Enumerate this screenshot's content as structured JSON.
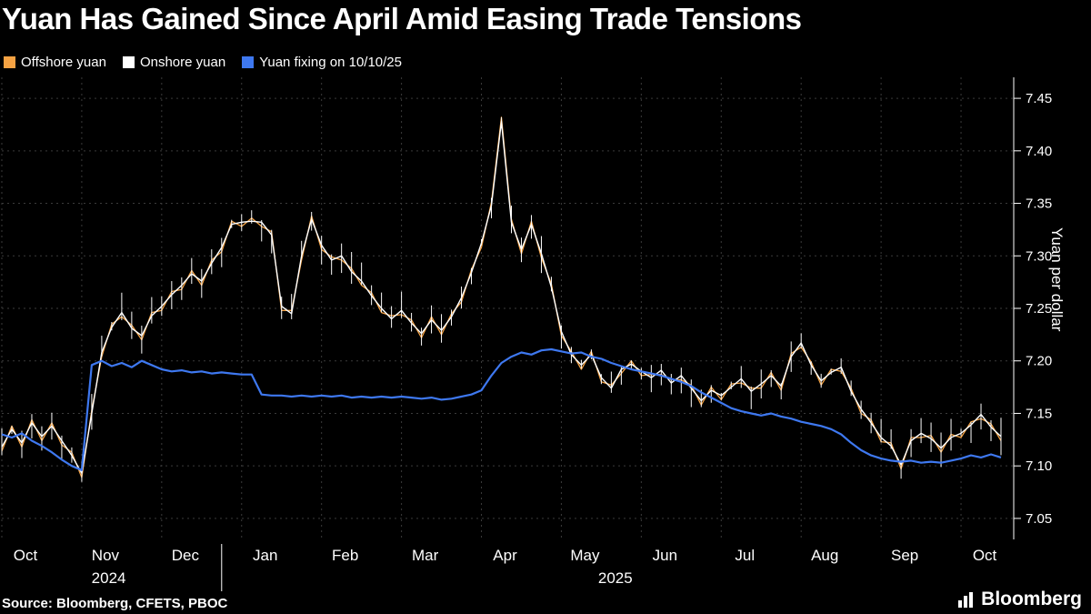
{
  "title": "Yuan Has Gained Since April Amid Easing Trade Tensions",
  "legend": [
    {
      "label": "Offshore yuan",
      "color": "#F5A243"
    },
    {
      "label": "Onshore yuan",
      "color": "#FFFFFF"
    },
    {
      "label": "Yuan fixing on 10/10/25",
      "color": "#3E78F0"
    }
  ],
  "source": "Source: Bloomberg, CFETS, PBOC",
  "logo_text": "Bloomberg",
  "chart_data": {
    "type": "line",
    "title": "Yuan Has Gained Since April Amid Easing Trade Tensions",
    "xlabel": "",
    "ylabel": "Yuan per dollar",
    "ylim": [
      7.03,
      7.47
    ],
    "y_ticks": [
      7.45,
      7.4,
      7.35,
      7.3,
      7.25,
      7.2,
      7.15,
      7.1,
      7.05
    ],
    "grid": true,
    "legend_position": "top-left",
    "x_months": [
      {
        "label": "Oct",
        "i": 0
      },
      {
        "label": "Nov",
        "i": 8
      },
      {
        "label": "Dec",
        "i": 16
      },
      {
        "label": "Jan",
        "i": 24
      },
      {
        "label": "Feb",
        "i": 32
      },
      {
        "label": "Mar",
        "i": 40
      },
      {
        "label": "Apr",
        "i": 48
      },
      {
        "label": "May",
        "i": 56
      },
      {
        "label": "Jun",
        "i": 64
      },
      {
        "label": "Jul",
        "i": 72
      },
      {
        "label": "Aug",
        "i": 80
      },
      {
        "label": "Sep",
        "i": 88
      },
      {
        "label": "Oct",
        "i": 96
      }
    ],
    "years": [
      {
        "label": "2024",
        "i": 10.7
      },
      {
        "label": "2025",
        "i": 61.4
      }
    ],
    "year_divider_i": 22,
    "bar_amplitude": 0.017,
    "colors": {
      "background": "#000000",
      "grid": "#3B3B3B",
      "axis": "#FFFFFF",
      "text": "#FFFFFF"
    },
    "series": [
      {
        "id": "offshore-yuan",
        "name": "Offshore yuan",
        "color": "#F5A243",
        "width": 1.3,
        "bars": false,
        "values": [
          7.114,
          7.138,
          7.118,
          7.144,
          7.124,
          7.141,
          7.12,
          7.113,
          7.089,
          7.153,
          7.204,
          7.235,
          7.242,
          7.234,
          7.22,
          7.246,
          7.248,
          7.266,
          7.268,
          7.286,
          7.272,
          7.296,
          7.304,
          7.333,
          7.328,
          7.336,
          7.328,
          7.323,
          7.248,
          7.248,
          7.296,
          7.338,
          7.306,
          7.299,
          7.296,
          7.288,
          7.272,
          7.265,
          7.246,
          7.243,
          7.244,
          7.239,
          7.222,
          7.242,
          7.225,
          7.245,
          7.256,
          7.287,
          7.308,
          7.351,
          7.432,
          7.335,
          7.302,
          7.333,
          7.298,
          7.273,
          7.224,
          7.209,
          7.192,
          7.209,
          7.18,
          7.177,
          7.188,
          7.2,
          7.186,
          7.187,
          7.187,
          7.182,
          7.182,
          7.177,
          7.158,
          7.175,
          7.163,
          7.178,
          7.179,
          7.174,
          7.174,
          7.189,
          7.172,
          7.207,
          7.213,
          7.199,
          7.177,
          7.192,
          7.19,
          7.174,
          7.15,
          7.144,
          7.123,
          7.122,
          7.097,
          7.127,
          7.127,
          7.129,
          7.113,
          7.13,
          7.127,
          7.142,
          7.145,
          7.14,
          7.124
        ]
      },
      {
        "id": "onshore-yuan",
        "name": "Onshore yuan",
        "color": "#FFFFFF",
        "width": 1.4,
        "bars": true,
        "values": [
          7.118,
          7.135,
          7.122,
          7.141,
          7.128,
          7.138,
          7.124,
          7.11,
          7.093,
          7.15,
          7.208,
          7.232,
          7.246,
          7.231,
          7.224,
          7.243,
          7.252,
          7.263,
          7.272,
          7.283,
          7.276,
          7.293,
          7.308,
          7.33,
          7.332,
          7.333,
          7.332,
          7.32,
          7.252,
          7.245,
          7.3,
          7.335,
          7.31,
          7.296,
          7.3,
          7.285,
          7.276,
          7.262,
          7.25,
          7.24,
          7.248,
          7.236,
          7.226,
          7.239,
          7.229,
          7.242,
          7.26,
          7.284,
          7.312,
          7.348,
          7.428,
          7.332,
          7.306,
          7.33,
          7.302,
          7.27,
          7.228,
          7.206,
          7.196,
          7.206,
          7.184,
          7.174,
          7.192,
          7.197,
          7.19,
          7.184,
          7.191,
          7.179,
          7.186,
          7.174,
          7.162,
          7.172,
          7.167,
          7.175,
          7.183,
          7.171,
          7.178,
          7.186,
          7.176,
          7.204,
          7.217,
          7.196,
          7.181,
          7.189,
          7.194,
          7.171,
          7.154,
          7.141,
          7.127,
          7.119,
          7.101,
          7.124,
          7.131,
          7.126,
          7.117,
          7.127,
          7.131,
          7.139,
          7.149,
          7.137,
          7.128
        ]
      },
      {
        "id": "yuan-fixing",
        "name": "Yuan fixing on 10/10/25",
        "color": "#3E78F0",
        "width": 2.2,
        "bars": false,
        "values": [
          7.13,
          7.127,
          7.131,
          7.124,
          7.119,
          7.113,
          7.106,
          7.1,
          7.096,
          7.196,
          7.2,
          7.195,
          7.198,
          7.194,
          7.2,
          7.196,
          7.192,
          7.19,
          7.191,
          7.189,
          7.19,
          7.188,
          7.189,
          7.188,
          7.187,
          7.187,
          7.168,
          7.167,
          7.167,
          7.166,
          7.167,
          7.166,
          7.167,
          7.166,
          7.167,
          7.165,
          7.166,
          7.165,
          7.166,
          7.165,
          7.166,
          7.165,
          7.164,
          7.165,
          7.163,
          7.164,
          7.166,
          7.168,
          7.172,
          7.186,
          7.198,
          7.204,
          7.208,
          7.206,
          7.21,
          7.211,
          7.209,
          7.207,
          7.208,
          7.204,
          7.202,
          7.198,
          7.195,
          7.192,
          7.19,
          7.188,
          7.186,
          7.183,
          7.18,
          7.176,
          7.17,
          7.165,
          7.16,
          7.155,
          7.152,
          7.15,
          7.148,
          7.15,
          7.147,
          7.145,
          7.142,
          7.14,
          7.138,
          7.135,
          7.13,
          7.122,
          7.115,
          7.11,
          7.107,
          7.105,
          7.104,
          7.105,
          7.103,
          7.104,
          7.103,
          7.105,
          7.107,
          7.11,
          7.108,
          7.111,
          7.108
        ]
      }
    ]
  }
}
